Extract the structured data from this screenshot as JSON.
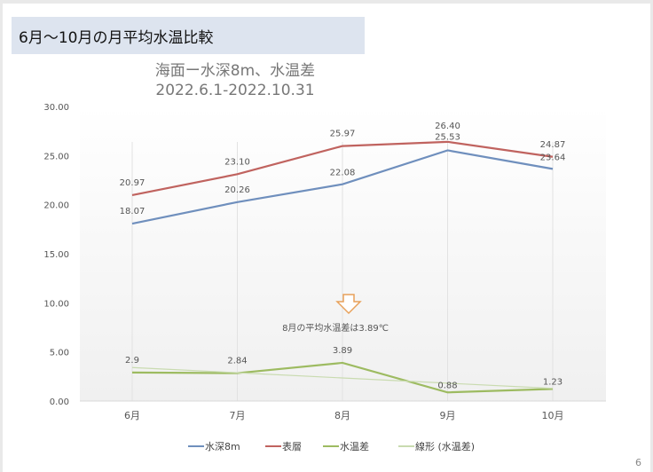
{
  "slide": {
    "title": "6月～10月の月平均水温比較",
    "page_number": "6"
  },
  "chart_data": {
    "type": "line",
    "title": "海面ー水深8m、水温差",
    "subtitle": "2022.6.1-2022.10.31",
    "categories": [
      "6月",
      "7月",
      "8月",
      "9月",
      "10月"
    ],
    "ylim": [
      0,
      30
    ],
    "yticks": [
      "0.00",
      "5.00",
      "10.00",
      "15.00",
      "20.00",
      "25.00",
      "30.00"
    ],
    "grid": "vertical",
    "legend_position": "bottom",
    "series": [
      {
        "name": "水深8m",
        "color": "#6f8fbd",
        "values": [
          18.07,
          20.26,
          22.08,
          25.53,
          23.64
        ],
        "labels": [
          "18.07",
          "20.26",
          "22.08",
          "25.53",
          "23.64"
        ]
      },
      {
        "name": "表層",
        "color": "#c0635f",
        "values": [
          20.97,
          23.1,
          25.97,
          26.4,
          24.87
        ],
        "labels": [
          "20.97",
          "23.10",
          "25.97",
          "26.40",
          "24.87"
        ]
      },
      {
        "name": "水温差",
        "color": "#9dbb61",
        "values": [
          2.9,
          2.84,
          3.89,
          0.88,
          1.23
        ],
        "labels": [
          "2.9",
          "2.84",
          "3.89",
          "0.88",
          "1.23"
        ]
      },
      {
        "name": "線形 (水温差)",
        "color": "#c9dbb0",
        "trendline": true,
        "values": [
          3.408,
          2.878,
          2.348,
          1.818,
          1.288
        ]
      }
    ],
    "annotation": {
      "text": "8月の平均水温差は3.89℃",
      "arrow_color": "#e8a15a",
      "category": "8月"
    }
  }
}
